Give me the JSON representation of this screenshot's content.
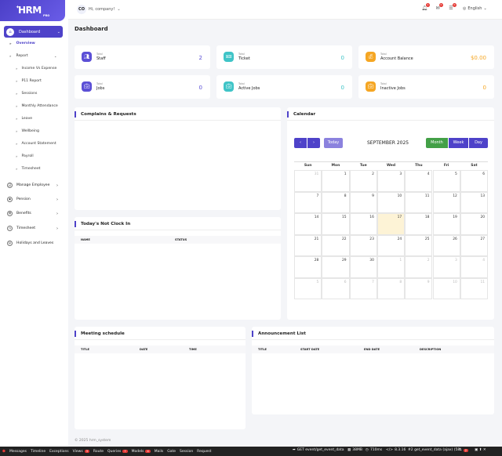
{
  "app": {
    "logo": "HRM",
    "logo_sub": "PRO"
  },
  "topbar": {
    "avatar": "CO",
    "greeting": "Hi, company!",
    "badges": [
      "1",
      "0",
      "0"
    ],
    "language": "English"
  },
  "page_title": "Dashboard",
  "sidebar": {
    "dashboard": "Dashboard",
    "overview": "Overview",
    "report": "Report",
    "report_items": [
      "Income Vs Expense",
      "P11 Report",
      "Sessions",
      "Monthly Attendance",
      "Leave",
      "Wellbeing",
      "Account Statement",
      "Payroll",
      "Timesheet"
    ],
    "menus": [
      "Manage Employee",
      "Pension",
      "Benefits",
      "Timesheet",
      "Holidays and Leaves"
    ]
  },
  "stats": [
    {
      "label": "Total",
      "name": "Staff",
      "value": "2",
      "color": "#5b4fd6",
      "icon": "users-icon"
    },
    {
      "label": "Total",
      "name": "Ticket",
      "value": "0",
      "color": "#3fc4c7",
      "icon": "ticket-icon"
    },
    {
      "label": "Total",
      "name": "Account Balance",
      "value": "$0.00",
      "color": "#f5a623",
      "icon": "wallet-icon"
    },
    {
      "label": "Total",
      "name": "Jobs",
      "value": "0",
      "color": "#5b4fd6",
      "icon": "briefcase-icon"
    },
    {
      "label": "Total",
      "name": "Active Jobs",
      "value": "0",
      "color": "#3fc4c7",
      "icon": "briefcase-icon"
    },
    {
      "label": "Total",
      "name": "Inactive Jobs",
      "value": "0",
      "color": "#f5a623",
      "icon": "briefcase-icon"
    }
  ],
  "panels": {
    "complains": "Complains & Requests",
    "not_clock_in": {
      "title": "Today's Not Clock In",
      "columns": [
        "NAME",
        "STATUS"
      ]
    },
    "calendar": {
      "title": "Calendar",
      "prev": "‹",
      "next": "›",
      "today": "Today",
      "month": "SEPTEMBER 2025",
      "views": [
        "Month",
        "Week",
        "Day"
      ],
      "days": [
        "Sun",
        "Mon",
        "Tue",
        "Wed",
        "Thu",
        "Fri",
        "Sat"
      ],
      "weeks": [
        [
          "31",
          "1",
          "2",
          "3",
          "4",
          "5",
          "6"
        ],
        [
          "7",
          "8",
          "9",
          "10",
          "11",
          "12",
          "13"
        ],
        [
          "14",
          "15",
          "16",
          "17",
          "18",
          "19",
          "20"
        ],
        [
          "21",
          "22",
          "23",
          "24",
          "25",
          "26",
          "27"
        ],
        [
          "28",
          "29",
          "30",
          "1",
          "2",
          "3",
          "4"
        ],
        [
          "5",
          "6",
          "7",
          "8",
          "9",
          "10",
          "11"
        ]
      ],
      "today_date": "17"
    },
    "meeting": {
      "title": "Meeting schedule",
      "columns": [
        "TITLE",
        "DATE",
        "TIME"
      ]
    },
    "announcement": {
      "title": "Announcement List",
      "columns": [
        "TITLE",
        "START DATE",
        "END DATE",
        "DESCRIPTION"
      ]
    }
  },
  "footer": "© 2025 hrm_system",
  "debugbar": {
    "items": [
      "Messages",
      "Timeline",
      "Exceptions",
      "Views",
      "Route",
      "Queries",
      "Models",
      "Mails",
      "Gate",
      "Session",
      "Request"
    ],
    "counts": {
      "Views": "3",
      "Queries": "7",
      "Models": "4"
    },
    "request": "GET event/get_event_data",
    "memory": "38MB",
    "time": "710ms",
    "version": "8.3.16",
    "route": "#2 get_event_data (ajax) (58",
    "error_count": "2"
  },
  "colors": {
    "accent": "#4e42c9",
    "month_active": "#43a047"
  }
}
